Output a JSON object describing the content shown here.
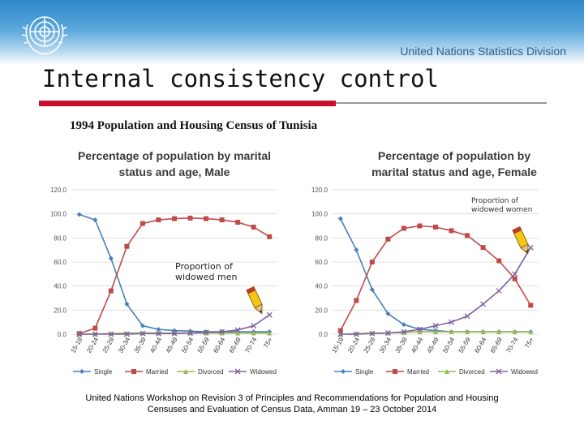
{
  "header": {
    "division": "United Nations Statistics Division",
    "title": "Internal consistency control",
    "subtitle": "1994 Population and Housing Census of Tunisia"
  },
  "footer": {
    "line1": "United Nations Workshop on Revision 3 of Principles and Recommendations for Population and Housing",
    "line2": "Censuses and Evaluation of Census Data, Amman 19 – 23 October 2014"
  },
  "colors": {
    "single": "#4a7ebb",
    "married": "#be4b48",
    "divorced": "#98b954",
    "widowed": "#7d60a0",
    "red_rule": "#c8102e",
    "grid": "#d9d9d9"
  },
  "chart_data": [
    {
      "type": "line",
      "title_lines": [
        "Percentage of population by marital",
        "status and age, Male"
      ],
      "categories": [
        "15-19",
        "20-24",
        "25-29",
        "30-34",
        "35-39",
        "40-44",
        "45-49",
        "50-54",
        "55-59",
        "60-64",
        "65-69",
        "70-74",
        "75+"
      ],
      "ylim": [
        0,
        120
      ],
      "yticks": [
        "120.0",
        "100.0",
        "80.0",
        "60.0",
        "40.0",
        "20.0",
        "0.0"
      ],
      "series": [
        {
          "name": "Single",
          "values": [
            99.5,
            95,
            63,
            25,
            7,
            4,
            3,
            2.5,
            2,
            2,
            2,
            2,
            2
          ]
        },
        {
          "name": "Married",
          "values": [
            0.5,
            5,
            36,
            73,
            92,
            95,
            96,
            96.5,
            96,
            95,
            93,
            89,
            81
          ]
        },
        {
          "name": "Divorced",
          "values": [
            0,
            0.2,
            0.5,
            1,
            1,
            1,
            1,
            1,
            1,
            1,
            1,
            1,
            1
          ]
        },
        {
          "name": "Widowed",
          "values": [
            0,
            0,
            0,
            0,
            0.5,
            0.5,
            0.5,
            1,
            1.5,
            2,
            3.5,
            7,
            16
          ]
        }
      ],
      "annotation": "Proportion of\nwidowed men"
    },
    {
      "type": "line",
      "title_lines": [
        "Percentage of population by",
        "marital status and age, Female"
      ],
      "categories": [
        "15-19",
        "20-24",
        "25-29",
        "30-34",
        "35-39",
        "40-44",
        "45-49",
        "50-54",
        "55-59",
        "60-64",
        "65-69",
        "70-74",
        "75+"
      ],
      "ylim": [
        0,
        120
      ],
      "yticks": [
        "120.0",
        "100.0",
        "80.0",
        "60.0",
        "40.0",
        "20.0",
        "0.0"
      ],
      "series": [
        {
          "name": "Single",
          "values": [
            96,
            70,
            37,
            17,
            8,
            4,
            3,
            2,
            2,
            2,
            2,
            2,
            2
          ]
        },
        {
          "name": "Married",
          "values": [
            3,
            28,
            60,
            79,
            88,
            90,
            89,
            86,
            82,
            72,
            61,
            46,
            24
          ]
        },
        {
          "name": "Divorced",
          "values": [
            0,
            0.5,
            1,
            1,
            1.5,
            2,
            2,
            2,
            2,
            2,
            2,
            2,
            2
          ]
        },
        {
          "name": "Widowed",
          "values": [
            0,
            0,
            0.5,
            1,
            2,
            4,
            7,
            10,
            15,
            25,
            36,
            50,
            72
          ]
        }
      ],
      "annotation": "Proportion of\nwidowed women"
    }
  ]
}
